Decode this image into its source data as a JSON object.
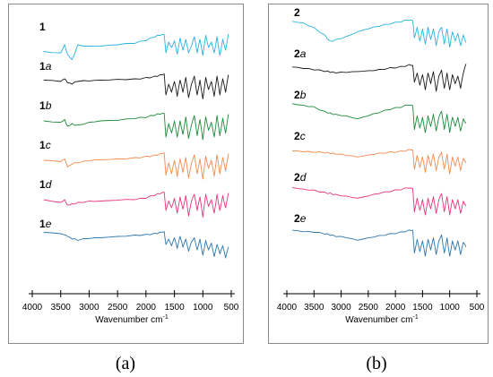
{
  "chart_data": [
    {
      "type": "line",
      "panel_caption": "(a)",
      "xlabel": "Wavenumber cm",
      "xlabel_superscript": "-1",
      "xlim": [
        4000,
        500
      ],
      "x_reversed": true,
      "xticks": [
        4000,
        3500,
        3000,
        2500,
        2000,
        1500,
        1000,
        500
      ],
      "y_axis_shown": false,
      "grid": false,
      "series": [
        {
          "name": "1",
          "label_main": "1",
          "label_suffix": "",
          "color": "#27b4e0",
          "x": [
            3800,
            3500,
            3430,
            3380,
            3300,
            3200,
            3000,
            2800,
            2500,
            2200,
            2000,
            1850,
            1750,
            1680,
            1650,
            1600,
            1550,
            1500,
            1450,
            1400,
            1350,
            1300,
            1250,
            1200,
            1150,
            1100,
            1050,
            1000,
            950,
            900,
            850,
            800,
            750,
            700,
            650,
            600,
            550
          ],
          "y": [
            0.35,
            0.3,
            0.6,
            0.25,
            0.05,
            0.6,
            0.55,
            0.55,
            0.6,
            0.65,
            0.75,
            0.88,
            0.95,
            0.98,
            0.3,
            0.7,
            0.5,
            0.75,
            0.25,
            0.85,
            0.4,
            0.8,
            0.3,
            0.55,
            0.9,
            0.3,
            0.8,
            0.2,
            0.95,
            0.5,
            0.7,
            0.3,
            0.9,
            0.2,
            0.8,
            0.4,
            1.0
          ]
        },
        {
          "name": "1a",
          "label_main": "1",
          "label_suffix": "a",
          "color": "#1a1a1a",
          "x": [
            3800,
            3500,
            3430,
            3380,
            3300,
            3200,
            3000,
            2800,
            2500,
            2200,
            2000,
            1850,
            1750,
            1680,
            1650,
            1600,
            1550,
            1500,
            1450,
            1400,
            1350,
            1300,
            1250,
            1200,
            1150,
            1100,
            1050,
            1000,
            950,
            900,
            850,
            800,
            750,
            700,
            650,
            600,
            550
          ],
          "y": [
            0.75,
            0.7,
            0.8,
            0.65,
            0.6,
            0.7,
            0.72,
            0.75,
            0.78,
            0.8,
            0.85,
            0.9,
            0.95,
            0.98,
            0.2,
            0.6,
            0.3,
            0.7,
            0.15,
            0.75,
            0.3,
            0.85,
            0.1,
            0.6,
            0.9,
            0.2,
            0.75,
            0.05,
            0.85,
            0.4,
            0.7,
            0.15,
            0.9,
            0.2,
            0.8,
            0.3,
            0.95
          ]
        },
        {
          "name": "1b",
          "label_main": "1",
          "label_suffix": "b",
          "color": "#1e8a3a",
          "x": [
            3800,
            3500,
            3430,
            3380,
            3300,
            3200,
            3000,
            2800,
            2500,
            2200,
            2000,
            1850,
            1750,
            1680,
            1650,
            1600,
            1550,
            1500,
            1450,
            1400,
            1350,
            1300,
            1250,
            1200,
            1150,
            1100,
            1050,
            1000,
            950,
            900,
            850,
            800,
            750,
            700,
            650,
            600,
            550
          ],
          "y": [
            0.7,
            0.65,
            0.75,
            0.5,
            0.6,
            0.55,
            0.65,
            0.7,
            0.72,
            0.78,
            0.82,
            0.9,
            0.95,
            0.98,
            0.1,
            0.6,
            0.25,
            0.7,
            0.1,
            0.7,
            0.2,
            0.85,
            0.05,
            0.55,
            0.9,
            0.15,
            0.75,
            0.0,
            0.85,
            0.35,
            0.65,
            0.1,
            0.9,
            0.15,
            0.8,
            0.25,
            0.95
          ]
        },
        {
          "name": "1c",
          "label_main": "1",
          "label_suffix": "c",
          "color": "#f08b4e",
          "x": [
            3800,
            3500,
            3430,
            3380,
            3300,
            3200,
            3000,
            2800,
            2500,
            2200,
            2000,
            1850,
            1750,
            1680,
            1650,
            1600,
            1550,
            1500,
            1450,
            1400,
            1350,
            1300,
            1250,
            1200,
            1150,
            1100,
            1050,
            1000,
            950,
            900,
            850,
            800,
            750,
            700,
            650,
            600,
            550
          ],
          "y": [
            0.7,
            0.65,
            0.75,
            0.45,
            0.55,
            0.6,
            0.68,
            0.72,
            0.75,
            0.8,
            0.85,
            0.9,
            0.95,
            0.98,
            0.15,
            0.6,
            0.2,
            0.7,
            0.1,
            0.75,
            0.25,
            0.8,
            0.05,
            0.6,
            0.9,
            0.2,
            0.75,
            0.0,
            0.85,
            0.4,
            0.7,
            0.1,
            0.9,
            0.2,
            0.8,
            0.3,
            0.95
          ]
        },
        {
          "name": "1d",
          "label_main": "1",
          "label_suffix": "d",
          "color": "#e8337d",
          "x": [
            3800,
            3500,
            3430,
            3380,
            3300,
            3200,
            3000,
            2800,
            2500,
            2200,
            2000,
            1850,
            1750,
            1680,
            1650,
            1600,
            1550,
            1500,
            1450,
            1400,
            1350,
            1300,
            1250,
            1200,
            1150,
            1100,
            1050,
            1000,
            950,
            900,
            850,
            800,
            750,
            700,
            650,
            600,
            550
          ],
          "y": [
            0.7,
            0.6,
            0.7,
            0.5,
            0.55,
            0.6,
            0.65,
            0.65,
            0.68,
            0.7,
            0.75,
            0.85,
            0.92,
            0.98,
            0.3,
            0.65,
            0.4,
            0.75,
            0.2,
            0.8,
            0.35,
            0.85,
            0.1,
            0.65,
            0.9,
            0.3,
            0.8,
            0.05,
            0.9,
            0.45,
            0.7,
            0.2,
            0.9,
            0.3,
            0.85,
            0.4,
            0.95
          ]
        },
        {
          "name": "1e",
          "label_main": "1",
          "label_suffix": "e",
          "color": "#2c77ad",
          "x": [
            3800,
            3500,
            3430,
            3380,
            3300,
            3200,
            3000,
            2800,
            2500,
            2200,
            2000,
            1850,
            1750,
            1680,
            1650,
            1600,
            1550,
            1500,
            1450,
            1400,
            1350,
            1300,
            1250,
            1200,
            1150,
            1100,
            1050,
            1000,
            950,
            900,
            850,
            800,
            750,
            700,
            650,
            600,
            550
          ],
          "y": [
            0.95,
            0.9,
            0.85,
            0.8,
            0.7,
            0.65,
            0.72,
            0.75,
            0.8,
            0.85,
            0.88,
            0.92,
            0.96,
            0.98,
            0.5,
            0.7,
            0.45,
            0.75,
            0.35,
            0.8,
            0.4,
            0.7,
            0.25,
            0.6,
            0.75,
            0.3,
            0.7,
            0.1,
            0.65,
            0.3,
            0.55,
            0.05,
            0.5,
            0.15,
            0.45,
            0.0,
            0.4
          ]
        }
      ]
    },
    {
      "type": "line",
      "panel_caption": "(b)",
      "xlabel": "Wavenumber cm",
      "xlabel_superscript": "-1",
      "xlim": [
        4000,
        500
      ],
      "x_reversed": true,
      "xticks": [
        4000,
        3500,
        3000,
        2500,
        2000,
        1500,
        1000,
        500
      ],
      "y_axis_shown": false,
      "grid": false,
      "series": [
        {
          "name": "2",
          "label_main": "2",
          "label_suffix": "",
          "color": "#27b4e0",
          "x": [
            3900,
            3700,
            3500,
            3300,
            3200,
            3100,
            2900,
            2700,
            2500,
            2300,
            2100,
            1900,
            1750,
            1680,
            1650,
            1600,
            1550,
            1500,
            1450,
            1400,
            1350,
            1300,
            1250,
            1200,
            1150,
            1100,
            1050,
            1000,
            950,
            900,
            850,
            800,
            750,
            700
          ],
          "y": [
            0.95,
            0.9,
            0.75,
            0.5,
            0.3,
            0.35,
            0.45,
            0.6,
            0.7,
            0.78,
            0.85,
            0.92,
            0.98,
            0.97,
            0.4,
            0.75,
            0.3,
            0.7,
            0.2,
            0.75,
            0.35,
            0.7,
            0.15,
            0.6,
            0.75,
            0.2,
            0.7,
            0.1,
            0.6,
            0.3,
            0.55,
            0.15,
            0.5,
            0.25
          ]
        },
        {
          "name": "2a",
          "label_main": "2",
          "label_suffix": "a",
          "color": "#1a1a1a",
          "x": [
            3900,
            3700,
            3500,
            3300,
            3200,
            3100,
            2900,
            2700,
            2500,
            2300,
            2100,
            1900,
            1750,
            1680,
            1650,
            1600,
            1550,
            1500,
            1450,
            1400,
            1350,
            1300,
            1250,
            1200,
            1150,
            1100,
            1050,
            1000,
            950,
            900,
            850,
            800,
            750,
            700
          ],
          "y": [
            0.8,
            0.75,
            0.7,
            0.65,
            0.62,
            0.6,
            0.62,
            0.65,
            0.68,
            0.72,
            0.78,
            0.82,
            0.88,
            0.85,
            0.3,
            0.6,
            0.2,
            0.55,
            0.05,
            0.6,
            0.25,
            0.65,
            0.0,
            0.5,
            0.7,
            0.1,
            0.6,
            0.05,
            0.55,
            0.25,
            0.5,
            0.1,
            0.6,
            0.9
          ]
        },
        {
          "name": "2b",
          "label_main": "2",
          "label_suffix": "b",
          "color": "#1e8a3a",
          "x": [
            3900,
            3700,
            3500,
            3300,
            3200,
            3100,
            2900,
            2700,
            2500,
            2300,
            2100,
            1900,
            1750,
            1680,
            1650,
            1600,
            1550,
            1500,
            1450,
            1400,
            1350,
            1300,
            1250,
            1200,
            1150,
            1100,
            1050,
            1000,
            950,
            900,
            850,
            800,
            750,
            700
          ],
          "y": [
            0.95,
            0.9,
            0.85,
            0.7,
            0.65,
            0.6,
            0.55,
            0.45,
            0.55,
            0.65,
            0.75,
            0.82,
            0.9,
            0.88,
            0.1,
            0.55,
            0.15,
            0.5,
            0.0,
            0.55,
            0.2,
            0.6,
            0.05,
            0.5,
            0.7,
            0.1,
            0.6,
            0.0,
            0.5,
            0.2,
            0.5,
            0.05,
            0.45,
            0.3
          ]
        },
        {
          "name": "2c",
          "label_main": "2",
          "label_suffix": "c",
          "color": "#f08b4e",
          "x": [
            3900,
            3700,
            3500,
            3300,
            3200,
            3100,
            2900,
            2700,
            2500,
            2300,
            2100,
            1900,
            1750,
            1680,
            1650,
            1600,
            1550,
            1500,
            1450,
            1400,
            1350,
            1300,
            1250,
            1200,
            1150,
            1100,
            1050,
            1000,
            950,
            900,
            850,
            800,
            750,
            700
          ],
          "y": [
            0.75,
            0.72,
            0.7,
            0.68,
            0.66,
            0.64,
            0.6,
            0.55,
            0.62,
            0.68,
            0.72,
            0.75,
            0.8,
            0.78,
            0.15,
            0.6,
            0.2,
            0.55,
            0.05,
            0.6,
            0.25,
            0.65,
            0.1,
            0.55,
            0.7,
            0.15,
            0.65,
            0.0,
            0.55,
            0.25,
            0.55,
            0.1,
            0.5,
            0.35
          ]
        },
        {
          "name": "2d",
          "label_main": "2",
          "label_suffix": "d",
          "color": "#e8337d",
          "x": [
            3900,
            3700,
            3500,
            3300,
            3200,
            3100,
            2900,
            2700,
            2500,
            2300,
            2100,
            1900,
            1750,
            1680,
            1650,
            1600,
            1550,
            1500,
            1450,
            1400,
            1350,
            1300,
            1250,
            1200,
            1150,
            1100,
            1050,
            1000,
            950,
            900,
            850,
            800,
            750,
            700
          ],
          "y": [
            0.9,
            0.85,
            0.82,
            0.75,
            0.72,
            0.68,
            0.62,
            0.55,
            0.62,
            0.7,
            0.76,
            0.82,
            0.88,
            0.86,
            0.1,
            0.55,
            0.15,
            0.5,
            0.0,
            0.55,
            0.2,
            0.6,
            0.05,
            0.5,
            0.7,
            0.1,
            0.6,
            0.0,
            0.5,
            0.2,
            0.5,
            0.05,
            0.45,
            0.3
          ]
        },
        {
          "name": "2e",
          "label_main": "2",
          "label_suffix": "e",
          "color": "#2c77ad",
          "x": [
            3900,
            3700,
            3500,
            3300,
            3200,
            3100,
            2900,
            2700,
            2500,
            2300,
            2100,
            1900,
            1750,
            1680,
            1650,
            1600,
            1550,
            1500,
            1450,
            1400,
            1350,
            1300,
            1250,
            1200,
            1150,
            1100,
            1050,
            1000,
            950,
            900,
            850,
            800,
            750,
            700
          ],
          "y": [
            0.85,
            0.8,
            0.78,
            0.72,
            0.68,
            0.64,
            0.6,
            0.52,
            0.6,
            0.68,
            0.74,
            0.8,
            0.86,
            0.85,
            0.1,
            0.55,
            0.15,
            0.5,
            0.0,
            0.55,
            0.2,
            0.6,
            0.05,
            0.5,
            0.7,
            0.1,
            0.6,
            0.0,
            0.5,
            0.2,
            0.5,
            0.05,
            0.45,
            0.3
          ]
        }
      ]
    }
  ]
}
